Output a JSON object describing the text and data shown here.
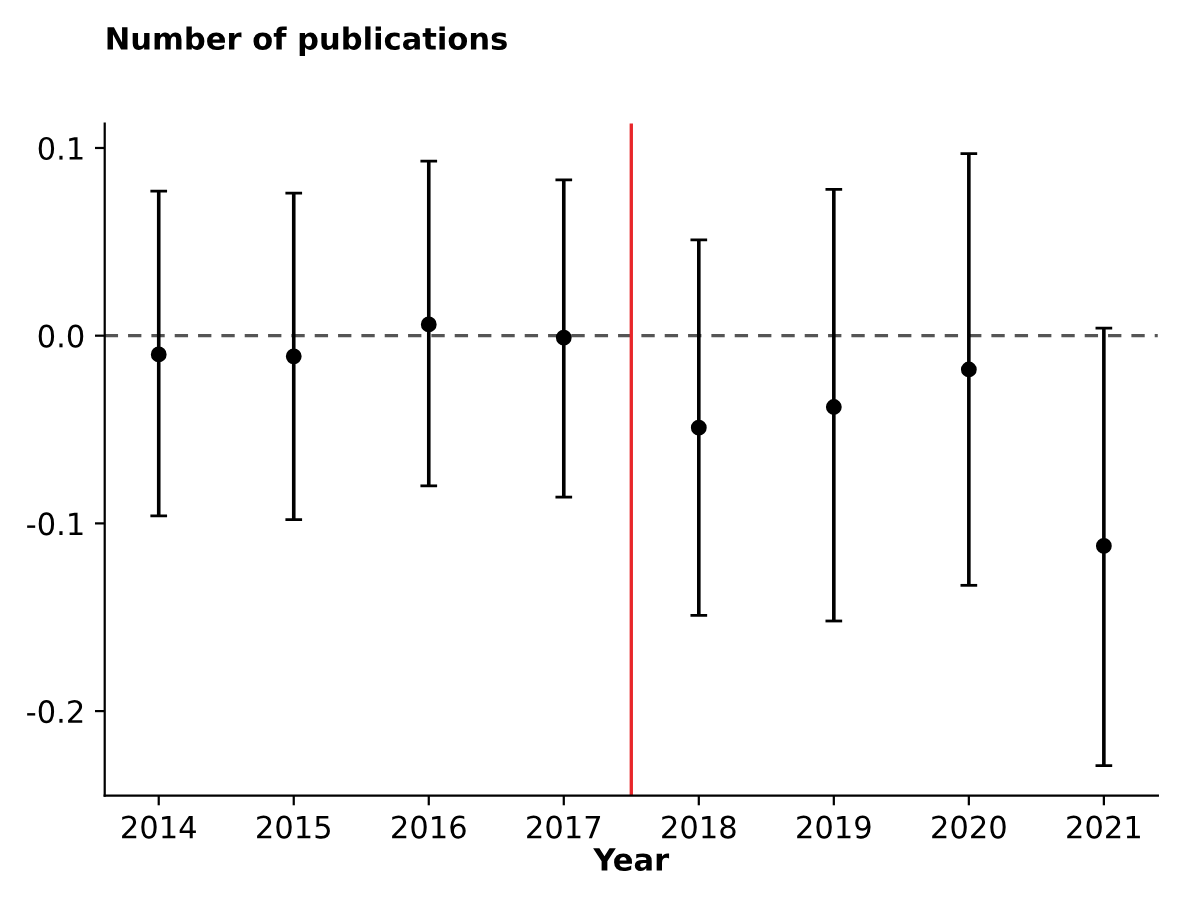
{
  "chart_data": {
    "type": "scatter",
    "title": "Number of publications",
    "xlabel": "Year",
    "x": [
      2014,
      2015,
      2016,
      2017,
      2018,
      2019,
      2020,
      2021
    ],
    "values": [
      -0.01,
      -0.011,
      0.006,
      -0.001,
      -0.049,
      -0.038,
      -0.018,
      -0.112
    ],
    "errors": [
      [
        -0.096,
        0.077
      ],
      [
        -0.098,
        0.076
      ],
      [
        -0.08,
        0.093
      ],
      [
        -0.086,
        0.083
      ],
      [
        -0.149,
        0.051
      ],
      [
        -0.152,
        0.078
      ],
      [
        -0.133,
        0.097
      ],
      [
        -0.229,
        0.004
      ]
    ],
    "color": "#000000",
    "marker": "circle",
    "xlim": [
      2013.6,
      2021.4
    ],
    "xticks": [
      2014,
      2015,
      2016,
      2017,
      2018,
      2019,
      2020,
      2021
    ],
    "ylim": [
      -0.245,
      0.113
    ],
    "yticks": [
      0.1,
      {
        "value": 0,
        "label": "0.0"
      },
      -0.1,
      -0.2
    ],
    "ref_lines": [
      {
        "axis": "y",
        "value": 0,
        "color": "#555555",
        "line_style": "dashed"
      },
      {
        "axis": "x",
        "value": 2017.5,
        "color": "#e8262a",
        "line_style": "solid"
      }
    ],
    "grid": false
  }
}
